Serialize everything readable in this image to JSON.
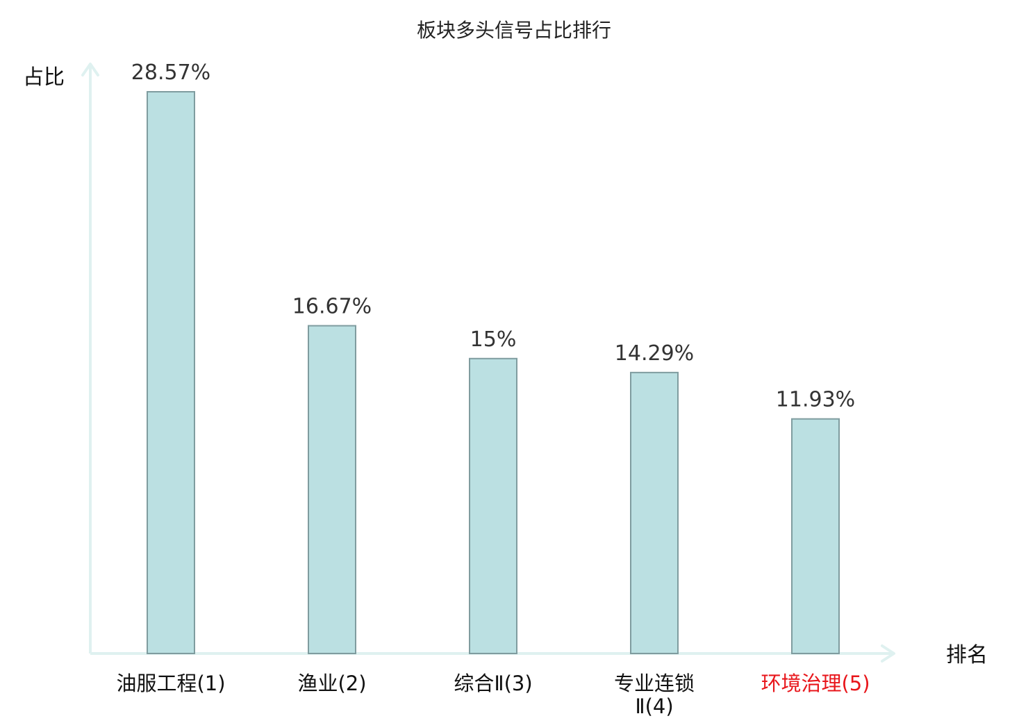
{
  "chart_data": {
    "type": "bar",
    "title": "板块多头信号占比排行",
    "ylabel": "占比",
    "xlabel": "排名",
    "categories": [
      {
        "lines": [
          "油服工程(1)"
        ],
        "highlight": false
      },
      {
        "lines": [
          "渔业(2)"
        ],
        "highlight": false
      },
      {
        "lines": [
          "综合Ⅱ(3)"
        ],
        "highlight": false
      },
      {
        "lines": [
          "专业连锁",
          "Ⅱ(4)"
        ],
        "highlight": false
      },
      {
        "lines": [
          "环境治理(5)"
        ],
        "highlight": true
      }
    ],
    "values": [
      28.57,
      16.67,
      15,
      14.29,
      11.93
    ],
    "value_labels": [
      "28.57%",
      "16.67%",
      "15%",
      "14.29%",
      "11.93%"
    ],
    "ylim": [
      0,
      30
    ],
    "grid": false,
    "legend": false
  },
  "colors": {
    "bar_fill": "#bbe0e2",
    "bar_stroke": "#7f9c9f",
    "axis": "#dff1f0",
    "label_text": "#111111",
    "highlight_text": "#e8161b",
    "value_text": "#333333"
  }
}
